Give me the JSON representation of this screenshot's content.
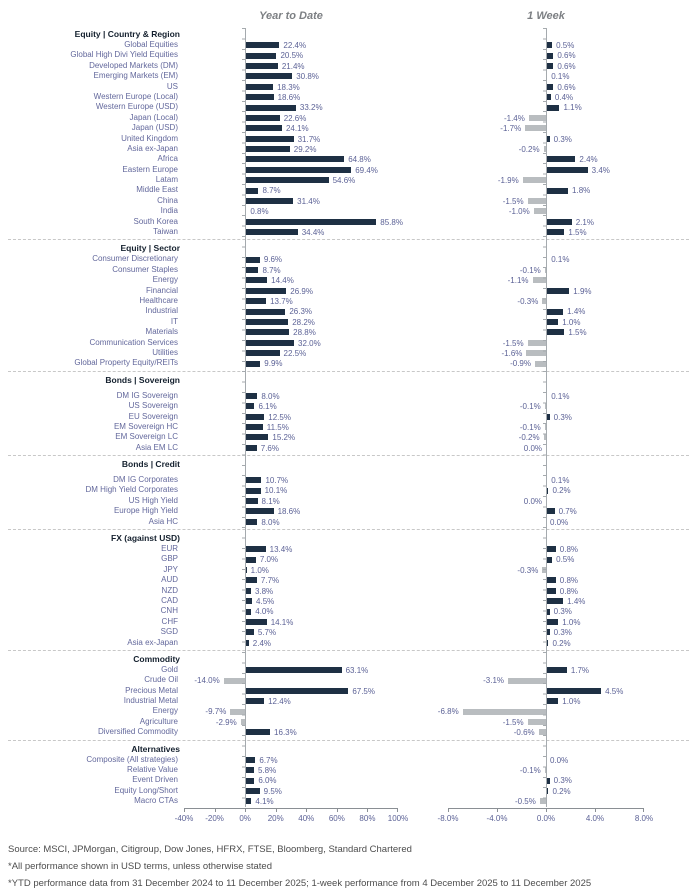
{
  "header": {
    "ytd_title": "Year to Date",
    "week_title": "1 Week"
  },
  "chart_data": {
    "type": "bar",
    "orientation": "horizontal",
    "series_columns": [
      "Year to Date",
      "1 Week"
    ],
    "colors": {
      "positive_bar": "#1e3044",
      "negative_bar": "#b9bdc0",
      "label_text": "#63689c"
    },
    "ytd_axis": {
      "min": -40,
      "max": 100,
      "ticks": [
        -40,
        -20,
        0,
        20,
        40,
        60,
        80,
        100
      ],
      "tick_labels": [
        "-40%",
        "-20%",
        "0%",
        "20%",
        "40%",
        "60%",
        "80%",
        "100%"
      ]
    },
    "week_axis": {
      "min": -8,
      "max": 8,
      "ticks": [
        -8,
        -4,
        0,
        4,
        8
      ],
      "tick_labels": [
        "-8.0%",
        "-4.0%",
        "0.0%",
        "4.0%",
        "8.0%"
      ]
    },
    "sections": [
      {
        "name": "Equity | Country & Region",
        "gap_after_header": false,
        "rows": [
          {
            "label": "Global Equities",
            "ytd": 22.4,
            "week": 0.5
          },
          {
            "label": "Global High Divi Yield Equities",
            "ytd": 20.5,
            "week": 0.6
          },
          {
            "label": "Developed Markets (DM)",
            "ytd": 21.4,
            "week": 0.6
          },
          {
            "label": "Emerging Markets (EM)",
            "ytd": 30.8,
            "week": 0.1
          },
          {
            "label": "US",
            "ytd": 18.3,
            "week": 0.6
          },
          {
            "label": "Western Europe (Local)",
            "ytd": 18.6,
            "week": 0.4
          },
          {
            "label": "Western Europe (USD)",
            "ytd": 33.2,
            "week": 1.1
          },
          {
            "label": "Japan (Local)",
            "ytd": 22.6,
            "week": -1.4
          },
          {
            "label": "Japan (USD)",
            "ytd": 24.1,
            "week": -1.7
          },
          {
            "label": "United Kingdom",
            "ytd": 31.7,
            "week": 0.3
          },
          {
            "label": "Asia ex-Japan",
            "ytd": 29.2,
            "week": -0.2
          },
          {
            "label": "Africa",
            "ytd": 64.8,
            "week": 2.4
          },
          {
            "label": "Eastern Europe",
            "ytd": 69.4,
            "week": 3.4
          },
          {
            "label": "Latam",
            "ytd": 54.6,
            "week": -1.9
          },
          {
            "label": "Middle East",
            "ytd": 8.7,
            "week": 1.8
          },
          {
            "label": "China",
            "ytd": 31.4,
            "week": -1.5
          },
          {
            "label": "India",
            "ytd": 0.8,
            "week": -1.0
          },
          {
            "label": "South Korea",
            "ytd": 85.8,
            "week": 2.1
          },
          {
            "label": "Taiwan",
            "ytd": 34.4,
            "week": 1.5
          }
        ]
      },
      {
        "name": "Equity | Sector",
        "gap_after_header": false,
        "rows": [
          {
            "label": "Consumer Discretionary",
            "ytd": 9.6,
            "week": 0.1
          },
          {
            "label": "Consumer Staples",
            "ytd": 8.7,
            "week": -0.1
          },
          {
            "label": "Energy",
            "ytd": 14.4,
            "week": -1.1
          },
          {
            "label": "Financial",
            "ytd": 26.9,
            "week": 1.9
          },
          {
            "label": "Healthcare",
            "ytd": 13.7,
            "week": -0.3
          },
          {
            "label": "Industrial",
            "ytd": 26.3,
            "week": 1.4
          },
          {
            "label": "IT",
            "ytd": 28.2,
            "week": 1.0
          },
          {
            "label": "Materials",
            "ytd": 28.8,
            "week": 1.5
          },
          {
            "label": "Communication Services",
            "ytd": 32.0,
            "week": -1.5
          },
          {
            "label": "Utilities",
            "ytd": 22.5,
            "week": -1.6
          },
          {
            "label": "Global Property Equity/REITs",
            "ytd": 9.9,
            "week": -0.9
          }
        ]
      },
      {
        "name": "Bonds | Sovereign",
        "gap_after_header": true,
        "rows": [
          {
            "label": "DM IG Sovereign",
            "ytd": 8.0,
            "week": 0.1
          },
          {
            "label": "US Sovereign",
            "ytd": 6.1,
            "week": -0.1
          },
          {
            "label": "EU Sovereign",
            "ytd": 12.5,
            "week": 0.3
          },
          {
            "label": "EM Sovereign HC",
            "ytd": 11.5,
            "week": -0.1
          },
          {
            "label": "EM Sovereign LC",
            "ytd": 15.2,
            "week": -0.2
          },
          {
            "label": "Asia EM LC",
            "ytd": 7.6,
            "week": 0.0,
            "week_side": "left"
          }
        ]
      },
      {
        "name": "Bonds | Credit",
        "gap_after_header": true,
        "rows": [
          {
            "label": "DM IG Corporates",
            "ytd": 10.7,
            "week": 0.1
          },
          {
            "label": "DM High Yield Corporates",
            "ytd": 10.1,
            "week": 0.2
          },
          {
            "label": "US High Yield",
            "ytd": 8.1,
            "week": 0.0,
            "week_side": "left"
          },
          {
            "label": "Europe High Yield",
            "ytd": 18.6,
            "week": 0.7
          },
          {
            "label": "Asia HC",
            "ytd": 8.0,
            "week": 0.0
          }
        ]
      },
      {
        "name": "FX (against USD)",
        "gap_after_header": false,
        "rows": [
          {
            "label": "EUR",
            "ytd": 13.4,
            "week": 0.8
          },
          {
            "label": "GBP",
            "ytd": 7.0,
            "week": 0.5
          },
          {
            "label": "JPY",
            "ytd": 1.0,
            "week": -0.3
          },
          {
            "label": "AUD",
            "ytd": 7.7,
            "week": 0.8
          },
          {
            "label": "NZD",
            "ytd": 3.8,
            "week": 0.8
          },
          {
            "label": "CAD",
            "ytd": 4.5,
            "week": 1.4
          },
          {
            "label": "CNH",
            "ytd": 4.0,
            "week": 0.3
          },
          {
            "label": "CHF",
            "ytd": 14.1,
            "week": 1.0
          },
          {
            "label": "SGD",
            "ytd": 5.7,
            "week": 0.3
          },
          {
            "label": "Asia ex-Japan",
            "ytd": 2.4,
            "week": 0.2
          }
        ]
      },
      {
        "name": "Commodity",
        "gap_after_header": false,
        "rows": [
          {
            "label": "Gold",
            "ytd": 63.1,
            "week": 1.7
          },
          {
            "label": "Crude Oil",
            "ytd": -14.0,
            "week": -3.1
          },
          {
            "label": "Precious Metal",
            "ytd": 67.5,
            "week": 4.5
          },
          {
            "label": "Industrial Metal",
            "ytd": 12.4,
            "week": 1.0
          },
          {
            "label": "Energy",
            "ytd": -9.7,
            "week": -6.8
          },
          {
            "label": "Agriculture",
            "ytd": -2.9,
            "week": -1.5
          },
          {
            "label": "Diversified Commodity",
            "ytd": 16.3,
            "week": -0.6
          }
        ]
      },
      {
        "name": "Alternatives",
        "gap_after_header": false,
        "rows": [
          {
            "label": "Composite (All strategies)",
            "ytd": 6.7,
            "week": 0.0
          },
          {
            "label": "Relative Value",
            "ytd": 5.8,
            "week": -0.1
          },
          {
            "label": "Event Driven",
            "ytd": 6.0,
            "week": 0.3
          },
          {
            "label": "Equity Long/Short",
            "ytd": 9.5,
            "week": 0.2
          },
          {
            "label": "Macro CTAs",
            "ytd": 4.1,
            "week": -0.5
          }
        ]
      }
    ]
  },
  "footer": {
    "lines": [
      "Source: MSCI, JPMorgan, Citigroup, Dow Jones, HFRX, FTSE, Bloomberg, Standard Chartered",
      "*All performance shown in USD terms, unless otherwise stated",
      "*YTD performance data from 31 December 2024 to 11 December 2025; 1-week performance from 4 December 2025 to 11 December 2025"
    ]
  }
}
